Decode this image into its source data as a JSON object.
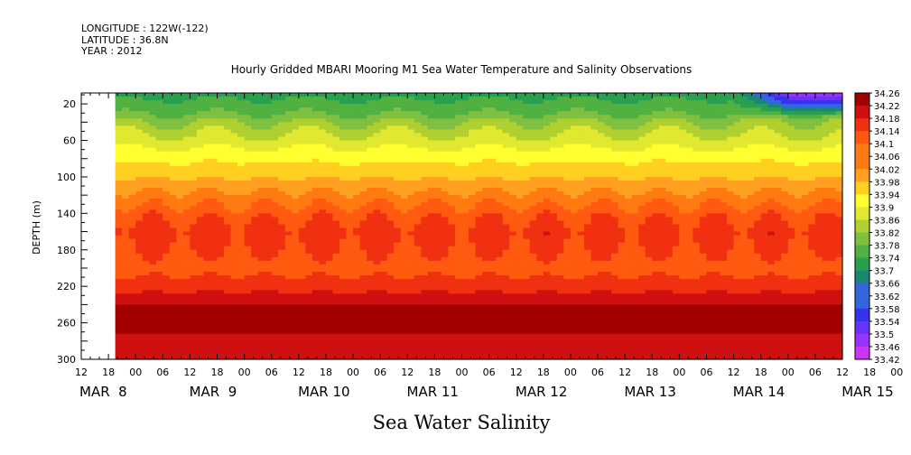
{
  "header": {
    "longitude": "LONGITUDE : 122W(-122)",
    "latitude": "LATITUDE : 36.8N",
    "year": "YEAR : 2012"
  },
  "title": "Hourly Gridded MBARI Mooring M1 Sea Water Temperature and Salinity Observations",
  "colors": {
    "scale": [
      "#cc33ff",
      "#9933ff",
      "#6633ff",
      "#3333ee",
      "#3366dd",
      "#1a8870",
      "#28a050",
      "#50b040",
      "#80c040",
      "#b0d030",
      "#e0e830",
      "#ffff30",
      "#ffd020",
      "#ffa020",
      "#ff7a10",
      "#ff5a10",
      "#f03010",
      "#d01010",
      "#a00000"
    ]
  },
  "chart_data": {
    "type": "heatmap",
    "title": "Hourly Gridded MBARI Mooring M1 Sea Water Temperature and Salinity Observations",
    "xlabel": "",
    "ylabel": "DEPTH (m)",
    "variable_title": "Sea Water Salinity",
    "x_tick_labels": [
      "12",
      "18",
      "00",
      "06",
      "12",
      "18",
      "00",
      "06",
      "12",
      "18",
      "00",
      "06",
      "12",
      "18",
      "00",
      "06",
      "12",
      "18",
      "00",
      "06",
      "12",
      "18",
      "00",
      "06",
      "12",
      "18",
      "00",
      "06",
      "12",
      "18",
      "00",
      "06",
      "12"
    ],
    "date_labels": [
      "MAR  8",
      "MAR  9",
      "MAR 10",
      "MAR 11",
      "MAR 12",
      "MAR 13",
      "MAR 14",
      "MAR 15"
    ],
    "xlim_hours_after_mar8_00": [
      12,
      180
    ],
    "data_start_hours_after_mar8_00": 19.5,
    "y_ticks": [
      20,
      60,
      100,
      140,
      180,
      220,
      260,
      300
    ],
    "ylim": [
      8,
      300
    ],
    "y_inverted": true,
    "colorbar_levels": [
      "34.26",
      "34.22",
      "34.18",
      "34.14",
      "34.1",
      "34.06",
      "34.02",
      "33.98",
      "33.94",
      "33.9",
      "33.86",
      "33.82",
      "33.78",
      "33.74",
      "33.7",
      "33.66",
      "33.62",
      "33.58",
      "33.54",
      "33.5",
      "33.46",
      "33.42"
    ],
    "colorbar_range": [
      33.42,
      34.26
    ],
    "depth_profile": {
      "depths": [
        10,
        20,
        30,
        40,
        60,
        80,
        100,
        120,
        140,
        160,
        180,
        200,
        220,
        240,
        260,
        280,
        300
      ],
      "salinity": [
        33.72,
        33.74,
        33.77,
        33.82,
        33.88,
        33.94,
        33.99,
        34.05,
        34.11,
        34.15,
        34.13,
        34.11,
        34.15,
        34.22,
        34.25,
        34.2,
        34.17
      ]
    },
    "low_salinity_surface_event": {
      "start_hour": 156,
      "end_hour": 180,
      "max_depth": 35,
      "min_salinity": 33.42
    }
  },
  "axis_label": "Sea Water Salinity"
}
